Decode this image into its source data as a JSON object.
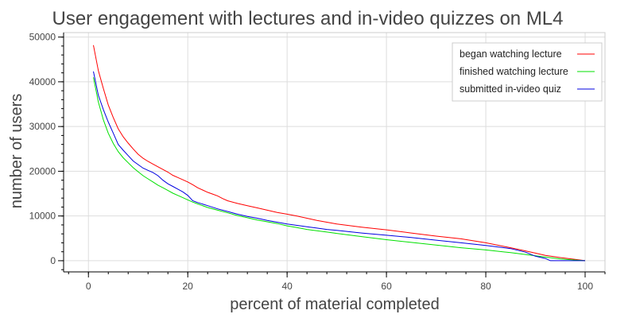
{
  "chart_data": {
    "type": "line",
    "title": "User engagement with lectures and in-video quizzes on ML4",
    "xlabel": "percent of material completed",
    "ylabel": "number of users",
    "xlim": [
      -5,
      104
    ],
    "ylim": [
      -2500,
      51000
    ],
    "x_ticks": [
      0,
      20,
      40,
      60,
      80,
      100
    ],
    "y_ticks": [
      0,
      10000,
      20000,
      30000,
      40000,
      50000
    ],
    "grid": true,
    "legend_position": "top-right",
    "series": [
      {
        "name": "began watching lecture",
        "color": "#ff0000",
        "x": [
          1,
          2,
          3,
          4,
          5,
          6,
          7,
          8,
          9,
          10,
          11,
          12,
          13,
          14,
          15,
          16,
          17,
          18,
          19,
          20,
          21,
          22,
          23,
          24,
          25,
          26,
          27,
          28,
          30,
          32,
          34,
          36,
          38,
          40,
          42,
          44,
          46,
          48,
          50,
          55,
          60,
          65,
          70,
          75,
          80,
          85,
          88,
          90,
          92,
          95,
          98,
          100
        ],
        "y": [
          48200,
          42500,
          38500,
          34800,
          32000,
          29500,
          27700,
          26300,
          25000,
          23800,
          22900,
          22200,
          21600,
          21000,
          20400,
          19800,
          19100,
          18600,
          18100,
          17600,
          17000,
          16300,
          15800,
          15300,
          14900,
          14500,
          13900,
          13400,
          12800,
          12300,
          11800,
          11300,
          10800,
          10400,
          10000,
          9500,
          9000,
          8600,
          8200,
          7500,
          6900,
          6200,
          5500,
          4900,
          4000,
          2900,
          2200,
          1700,
          1200,
          700,
          300,
          0
        ]
      },
      {
        "name": "finished watching lecture",
        "color": "#00e000",
        "x": [
          1,
          2,
          3,
          4,
          5,
          6,
          7,
          8,
          9,
          10,
          11,
          12,
          13,
          14,
          15,
          16,
          17,
          18,
          19,
          20,
          21,
          22,
          24,
          26,
          28,
          30,
          32,
          34,
          36,
          38,
          40,
          42,
          44,
          46,
          48,
          50,
          55,
          60,
          65,
          70,
          75,
          80,
          85,
          88,
          90,
          92,
          95,
          98,
          100
        ],
        "y": [
          41000,
          35500,
          31500,
          28500,
          26200,
          24400,
          23000,
          21900,
          20800,
          19900,
          19000,
          18300,
          17600,
          16900,
          16300,
          15700,
          15100,
          14600,
          14100,
          13600,
          13100,
          12700,
          11900,
          11300,
          10700,
          10100,
          9600,
          9100,
          8700,
          8300,
          7800,
          7400,
          7000,
          6700,
          6400,
          6100,
          5400,
          4700,
          4100,
          3500,
          2900,
          2400,
          1800,
          1400,
          1100,
          800,
          400,
          150,
          0
        ]
      },
      {
        "name": "submitted in-video quiz",
        "color": "#0000e0",
        "x": [
          1,
          2,
          3,
          4,
          5,
          6,
          7,
          8,
          9,
          10,
          11,
          12,
          13,
          14,
          15,
          16,
          17,
          18,
          19,
          20,
          21,
          22,
          24,
          26,
          28,
          30,
          32,
          34,
          36,
          38,
          40,
          42,
          44,
          46,
          48,
          50,
          55,
          60,
          65,
          70,
          75,
          80,
          85,
          88,
          90,
          92,
          93,
          95,
          98,
          100
        ],
        "y": [
          42300,
          37000,
          33800,
          31000,
          28500,
          26000,
          24700,
          23500,
          22300,
          21500,
          20700,
          20200,
          19700,
          19000,
          18000,
          17200,
          16600,
          16000,
          15400,
          14600,
          13400,
          13000,
          12300,
          11600,
          11000,
          10400,
          9900,
          9500,
          9000,
          8600,
          8200,
          7900,
          7600,
          7300,
          7000,
          6800,
          6200,
          5700,
          5200,
          4600,
          4000,
          3400,
          2700,
          1900,
          1000,
          500,
          0,
          0,
          0,
          0
        ]
      }
    ]
  }
}
